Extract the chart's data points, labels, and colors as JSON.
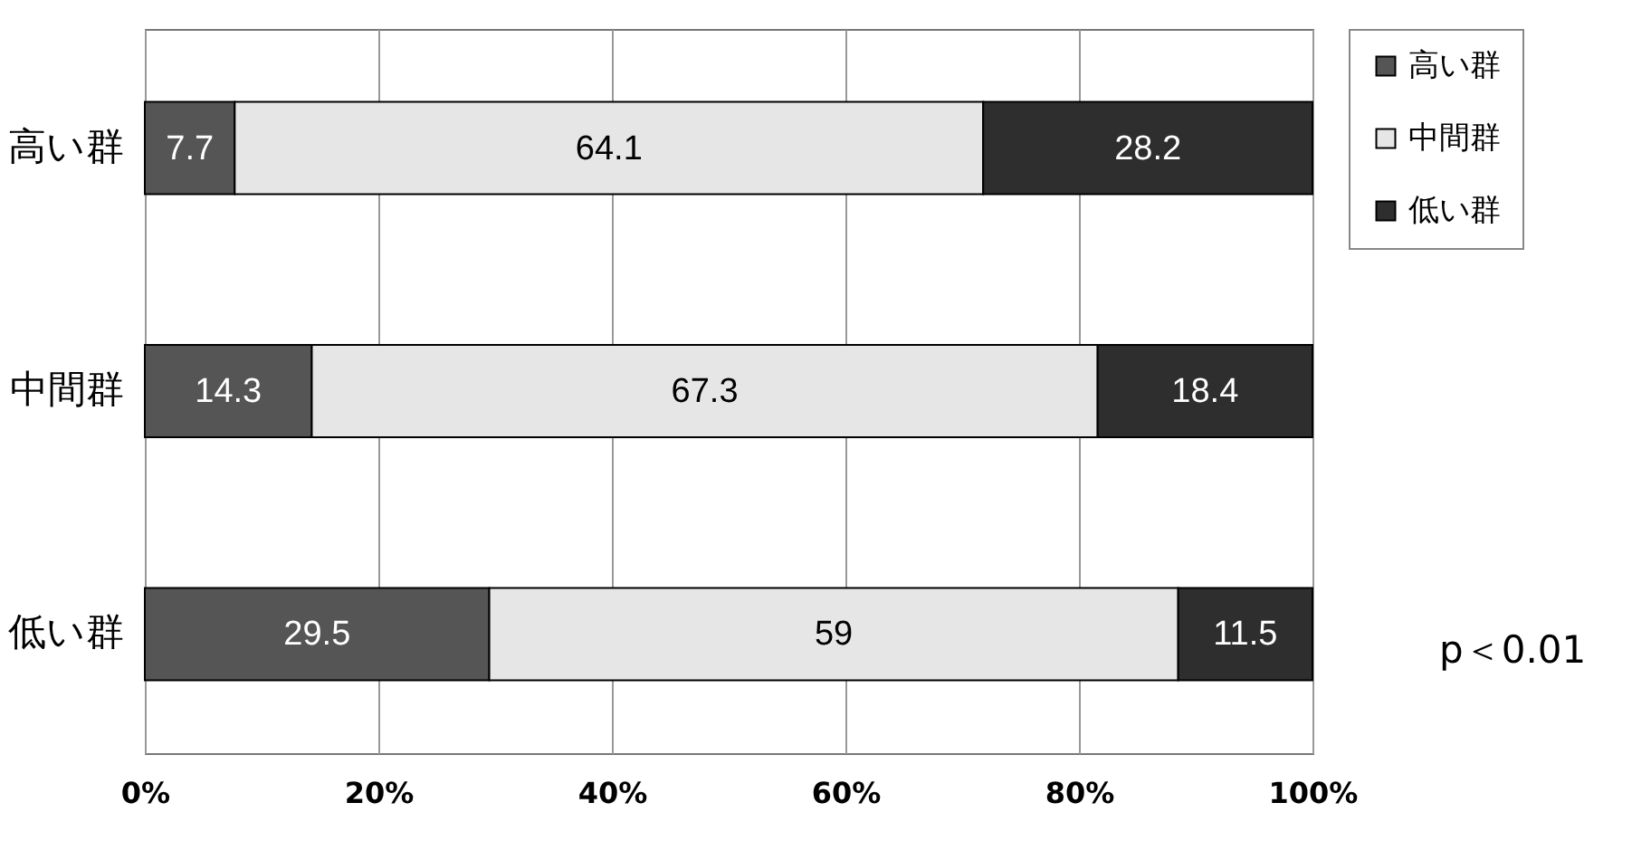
{
  "chart_data": {
    "type": "bar",
    "orientation": "horizontal",
    "stacked": true,
    "categories": [
      "高い群",
      "中間群",
      "低い群"
    ],
    "series": [
      {
        "name": "高い群",
        "color": "#555555",
        "values": [
          7.7,
          14.3,
          29.5
        ]
      },
      {
        "name": "中間群",
        "color": "#e6e6e6",
        "values": [
          64.1,
          67.3,
          59
        ]
      },
      {
        "name": "低い群",
        "color": "#2e2e2e",
        "values": [
          28.2,
          18.4,
          11.5
        ]
      }
    ],
    "xlim": [
      0,
      100
    ],
    "xticks": [
      {
        "value": 0,
        "label": "0%"
      },
      {
        "value": 20,
        "label": "20%"
      },
      {
        "value": 40,
        "label": "40%"
      },
      {
        "value": 60,
        "label": "60%"
      },
      {
        "value": 80,
        "label": "80%"
      },
      {
        "value": 100,
        "label": "100%"
      }
    ],
    "grid": "x",
    "legend": "top right",
    "data_labels": true,
    "annotations": [
      "p＜0.01"
    ]
  }
}
